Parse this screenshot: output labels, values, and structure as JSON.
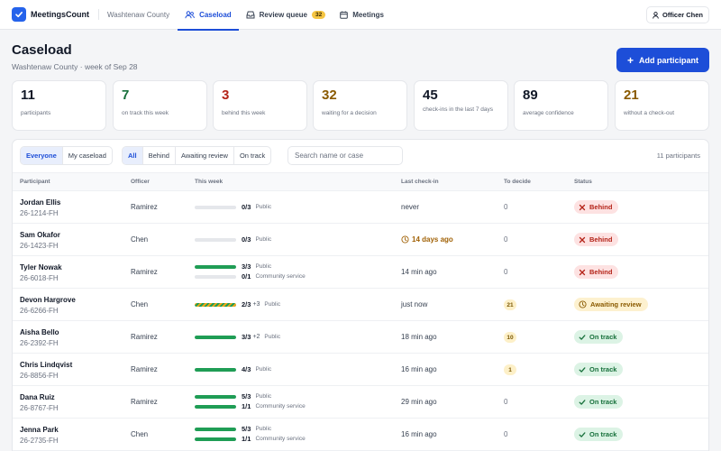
{
  "app": {
    "name": "MeetingsCount",
    "county": "Washtenaw County"
  },
  "nav": {
    "tabs": [
      {
        "label": "Caseload",
        "icon": "users-icon",
        "active": true
      },
      {
        "label": "Review queue",
        "icon": "inbox-icon",
        "badge": "32"
      },
      {
        "label": "Meetings",
        "icon": "calendar-icon"
      }
    ],
    "officer": "Officer Chen"
  },
  "header": {
    "title": "Caseload",
    "subtitle": "Washtenaw County · week of Sep 28",
    "add_label": "Add participant"
  },
  "stats": [
    {
      "value": "11",
      "label": "participants",
      "color": "#111827"
    },
    {
      "value": "7",
      "label": "on track this week",
      "color": "#17703b"
    },
    {
      "value": "3",
      "label": "behind this week",
      "color": "#b42318"
    },
    {
      "value": "32",
      "label": "waiting for a decision",
      "color": "#8a5a00"
    },
    {
      "value": "45",
      "label": "check-ins in the last 7 days",
      "color": "#111827"
    },
    {
      "value": "89",
      "label": "average confidence",
      "color": "#111827"
    },
    {
      "value": "21",
      "label": "without a check-out",
      "color": "#8a5a00"
    }
  ],
  "filters": {
    "scope": [
      "Everyone",
      "My caseload"
    ],
    "scope_active": 0,
    "status": [
      "All",
      "Behind",
      "Awaiting review",
      "On track"
    ],
    "status_active": 0,
    "search_placeholder": "Search name or case",
    "count_label": "11 participants"
  },
  "table": {
    "columns": [
      "Participant",
      "Officer",
      "This week",
      "Last check-in",
      "To decide",
      "Status"
    ],
    "rows": [
      {
        "name": "Jordan Ellis",
        "case": "26-1214-FH",
        "officer": "Ramirez",
        "progress": [
          {
            "value": "0/3",
            "extra": "",
            "category": "Public",
            "fraction": 0,
            "style": "green"
          }
        ],
        "last": "never",
        "last_style": "plain",
        "decide": "0",
        "status": "Behind",
        "status_kind": "behind"
      },
      {
        "name": "Sam Okafor",
        "case": "26-1423-FH",
        "officer": "Chen",
        "progress": [
          {
            "value": "0/3",
            "extra": "",
            "category": "Public",
            "fraction": 0,
            "style": "green"
          }
        ],
        "last": "14 days ago",
        "last_style": "amber",
        "decide": "0",
        "status": "Behind",
        "status_kind": "behind"
      },
      {
        "name": "Tyler Nowak",
        "case": "26-6018-FH",
        "officer": "Ramirez",
        "progress": [
          {
            "value": "3/3",
            "extra": "",
            "category": "Public",
            "fraction": 1,
            "style": "green"
          },
          {
            "value": "0/1",
            "extra": "",
            "category": "Community service",
            "fraction": 0,
            "style": "green"
          }
        ],
        "last": "14 min ago",
        "last_style": "plain",
        "decide": "0",
        "status": "Behind",
        "status_kind": "behind"
      },
      {
        "name": "Devon Hargrove",
        "case": "26-6266-FH",
        "officer": "Chen",
        "progress": [
          {
            "value": "2/3",
            "extra": "+3",
            "category": "Public",
            "fraction": 1,
            "style": "striped"
          }
        ],
        "last": "just now",
        "last_style": "plain",
        "decide": "21",
        "status": "Awaiting review",
        "status_kind": "review"
      },
      {
        "name": "Aisha Bello",
        "case": "26-2392-FH",
        "officer": "Ramirez",
        "progress": [
          {
            "value": "3/3",
            "extra": "+2",
            "category": "Public",
            "fraction": 1,
            "style": "green"
          }
        ],
        "last": "18 min ago",
        "last_style": "plain",
        "decide": "10",
        "status": "On track",
        "status_kind": "ontrack"
      },
      {
        "name": "Chris Lindqvist",
        "case": "26-8856-FH",
        "officer": "Ramirez",
        "progress": [
          {
            "value": "4/3",
            "extra": "",
            "category": "Public",
            "fraction": 1,
            "style": "green"
          }
        ],
        "last": "16 min ago",
        "last_style": "plain",
        "decide": "1",
        "status": "On track",
        "status_kind": "ontrack"
      },
      {
        "name": "Dana Ruiz",
        "case": "26-8767-FH",
        "officer": "Ramirez",
        "progress": [
          {
            "value": "5/3",
            "extra": "",
            "category": "Public",
            "fraction": 1,
            "style": "green"
          },
          {
            "value": "1/1",
            "extra": "",
            "category": "Community service",
            "fraction": 1,
            "style": "green"
          }
        ],
        "last": "29 min ago",
        "last_style": "plain",
        "decide": "0",
        "status": "On track",
        "status_kind": "ontrack"
      },
      {
        "name": "Jenna Park",
        "case": "26-2735-FH",
        "officer": "Chen",
        "progress": [
          {
            "value": "5/3",
            "extra": "",
            "category": "Public",
            "fraction": 1,
            "style": "green"
          },
          {
            "value": "1/1",
            "extra": "",
            "category": "Community service",
            "fraction": 1,
            "style": "green"
          }
        ],
        "last": "16 min ago",
        "last_style": "plain",
        "decide": "0",
        "status": "On track",
        "status_kind": "ontrack"
      }
    ]
  }
}
